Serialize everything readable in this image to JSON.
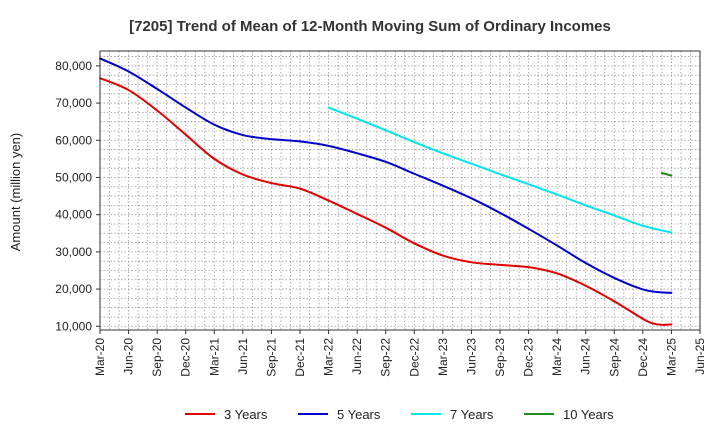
{
  "chart_data": {
    "type": "line",
    "title": "[7205]  Trend of Mean of 12-Month Moving Sum of Ordinary Incomes",
    "xlabel": "",
    "ylabel": "Amount (million yen)",
    "ylim": [
      9000,
      84000
    ],
    "yticks": [
      10000,
      20000,
      30000,
      40000,
      50000,
      60000,
      70000,
      80000
    ],
    "ytick_labels": [
      "10,000",
      "20,000",
      "30,000",
      "40,000",
      "50,000",
      "60,000",
      "70,000",
      "80,000"
    ],
    "x_range_months": [
      0,
      63
    ],
    "xtick_labels": [
      "Mar-20",
      "Jun-20",
      "Sep-20",
      "Dec-20",
      "Mar-21",
      "Jun-21",
      "Sep-21",
      "Dec-21",
      "Mar-22",
      "Jun-22",
      "Sep-22",
      "Dec-22",
      "Mar-23",
      "Jun-23",
      "Sep-23",
      "Dec-23",
      "Mar-24",
      "Jun-24",
      "Sep-24",
      "Dec-24",
      "Mar-25",
      "Jun-25"
    ],
    "grid": true,
    "legend_position": "bottom",
    "series": [
      {
        "name": "3 Years",
        "color": "#e00000",
        "x": [
          0,
          3,
          6,
          9,
          12,
          15,
          18,
          21,
          24,
          27,
          30,
          33,
          36,
          39,
          42,
          45,
          48,
          51,
          54,
          57,
          58,
          59,
          60
        ],
        "values": [
          76700,
          73500,
          68000,
          61500,
          55000,
          50800,
          48500,
          47000,
          43800,
          40200,
          36500,
          32300,
          29000,
          27200,
          26500,
          25900,
          24200,
          20900,
          16700,
          12000,
          10800,
          10400,
          10500
        ]
      },
      {
        "name": "5 Years",
        "color": "#0000cc",
        "x": [
          0,
          3,
          6,
          9,
          12,
          15,
          18,
          21,
          24,
          27,
          30,
          33,
          36,
          39,
          42,
          45,
          48,
          51,
          54,
          57,
          59,
          60
        ],
        "values": [
          82000,
          78500,
          73800,
          68800,
          64200,
          61400,
          60300,
          59700,
          58500,
          56500,
          54200,
          51000,
          47800,
          44400,
          40500,
          36200,
          31700,
          27000,
          23000,
          19900,
          19100,
          19000
        ]
      },
      {
        "name": "7 Years",
        "color": "#00e5ee",
        "x": [
          24,
          27,
          30,
          33,
          36,
          39,
          42,
          45,
          48,
          51,
          54,
          57,
          60
        ],
        "values": [
          68800,
          65800,
          62700,
          59500,
          56500,
          53700,
          50900,
          48200,
          45400,
          42500,
          39800,
          37000,
          35200
        ]
      },
      {
        "name": "10 Years",
        "color": "#228b22",
        "x": [
          59,
          60
        ],
        "values": [
          51200,
          50500
        ]
      }
    ]
  }
}
